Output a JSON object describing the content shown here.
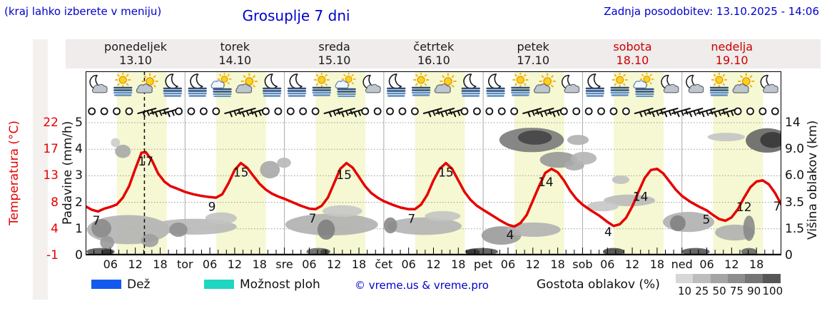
{
  "header": {
    "hint": "(kraj lahko izberete v meniju)",
    "title": "Grosuplje 7 dni",
    "last_update": "Zadnja posodobitev: 13.10.2025 - 14:06"
  },
  "day_header": {
    "days": [
      {
        "name": "ponedeljek",
        "date": "13.10",
        "highlight": false
      },
      {
        "name": "torek",
        "date": "14.10",
        "highlight": false
      },
      {
        "name": "sreda",
        "date": "15.10",
        "highlight": false
      },
      {
        "name": "četrtek",
        "date": "16.10",
        "highlight": false
      },
      {
        "name": "petek",
        "date": "17.10",
        "highlight": false
      },
      {
        "name": "sobota",
        "date": "18.10",
        "highlight": true
      },
      {
        "name": "nedelja",
        "date": "19.10",
        "highlight": true
      }
    ]
  },
  "axis_left": {
    "temp_title": "Temperatura (°C)",
    "temp_ticks": [
      "22",
      "17",
      "13",
      "8",
      "4",
      "-1"
    ],
    "precip_title": "Padavine (mm/h)",
    "precip_ticks": [
      "5",
      "4",
      "3",
      "2",
      "1",
      "0"
    ]
  },
  "axis_right": {
    "title": "Višina oblakov (km)",
    "ticks": [
      "14",
      "9.0",
      "6.0",
      "3.5",
      "1.5",
      "0"
    ]
  },
  "axis_bottom": {
    "hour_labels": [
      "06",
      "12",
      "18"
    ],
    "day_abbr": [
      "tor",
      "sre",
      "čet",
      "pet",
      "sob",
      "ned"
    ]
  },
  "legend": {
    "rain_label": "Dež",
    "rain_color": "#1359ee",
    "showers_label": "Možnost ploh",
    "showers_color": "#1fd6c1",
    "copyright": "© vreme.us & vreme.pro",
    "density_label": "Gostota oblakov (%)",
    "density_ticks": [
      "10",
      "25",
      "50",
      "75",
      "90",
      "100"
    ],
    "density_colors": [
      "#d7d7d7",
      "#bdbdbd",
      "#a4a4a4",
      "#8d8d8d",
      "#757575",
      "#575757"
    ]
  },
  "colors": {
    "accent_blue": "#0000cc",
    "temp_red": "#e60000",
    "day_red": "#cc0000",
    "band_yellow": "#f5f8d2",
    "grid_gray": "#999999",
    "separator_gray": "#aaaaaa"
  },
  "chart_data": {
    "type": "line",
    "title": "Grosuplje 7 dni",
    "x_axis": {
      "unit": "hours from Monday 00:00",
      "range": [
        0,
        168
      ],
      "hours_per_day": 24
    },
    "y_precip_axis": {
      "label": "Padavine (mm/h)",
      "ticks": [
        5,
        4,
        3,
        2,
        1,
        0
      ]
    },
    "y_temp_axis": {
      "label": "Temperatura (°C)",
      "ticks": [
        22,
        17,
        13,
        8,
        4,
        -1
      ],
      "unit_map": "u=(T+1)/4.6"
    },
    "y_cloud_axis": {
      "label": "Višina oblakov (km)",
      "ticks": [
        "14",
        "9.0",
        "6.0",
        "3.5",
        "1.5",
        "0"
      ]
    },
    "grid": true,
    "current_time_hour": 14.2,
    "daytime_frac": [
      0.315,
      0.815
    ],
    "temperature_series": {
      "name": "Temperatura",
      "color": "#e60000",
      "points": [
        [
          0,
          7.5
        ],
        [
          1.5,
          6.9
        ],
        [
          3,
          6.6
        ],
        [
          4.5,
          7.1
        ],
        [
          6,
          7.4
        ],
        [
          7.5,
          7.8
        ],
        [
          9,
          9.0
        ],
        [
          10.5,
          11.0
        ],
        [
          12,
          14.0
        ],
        [
          13.5,
          16.8
        ],
        [
          14.5,
          16.9
        ],
        [
          16,
          15.5
        ],
        [
          17.5,
          13.2
        ],
        [
          19,
          11.8
        ],
        [
          20.5,
          11.0
        ],
        [
          22,
          10.6
        ],
        [
          24,
          10.0
        ],
        [
          26,
          9.6
        ],
        [
          28,
          9.3
        ],
        [
          30,
          9.1
        ],
        [
          31.5,
          9.0
        ],
        [
          33,
          9.6
        ],
        [
          34.5,
          11.5
        ],
        [
          36,
          13.8
        ],
        [
          37.5,
          15.0
        ],
        [
          39,
          14.2
        ],
        [
          40.5,
          12.8
        ],
        [
          42,
          11.4
        ],
        [
          43.5,
          10.4
        ],
        [
          45,
          9.7
        ],
        [
          46.5,
          9.2
        ],
        [
          48,
          8.8
        ],
        [
          50,
          8.2
        ],
        [
          52,
          7.6
        ],
        [
          54,
          7.1
        ],
        [
          55.5,
          7.0
        ],
        [
          57,
          7.6
        ],
        [
          58.5,
          9.0
        ],
        [
          60,
          11.5
        ],
        [
          61.5,
          14.0
        ],
        [
          63,
          15.0
        ],
        [
          64.5,
          14.2
        ],
        [
          66,
          12.6
        ],
        [
          67.5,
          11.0
        ],
        [
          69,
          9.8
        ],
        [
          70.5,
          9.0
        ],
        [
          72,
          8.4
        ],
        [
          74,
          7.8
        ],
        [
          76,
          7.3
        ],
        [
          78,
          7.0
        ],
        [
          79.5,
          7.0
        ],
        [
          81,
          7.8
        ],
        [
          82.5,
          9.5
        ],
        [
          84,
          12.0
        ],
        [
          85.5,
          14.0
        ],
        [
          87,
          15.0
        ],
        [
          88.5,
          14.0
        ],
        [
          90,
          12.0
        ],
        [
          91.5,
          10.0
        ],
        [
          93,
          8.6
        ],
        [
          94.5,
          7.6
        ],
        [
          96,
          6.9
        ],
        [
          98,
          6.0
        ],
        [
          100,
          5.1
        ],
        [
          102,
          4.3
        ],
        [
          103.5,
          4.0
        ],
        [
          105,
          4.6
        ],
        [
          106.5,
          6.0
        ],
        [
          108,
          8.5
        ],
        [
          109.5,
          11.0
        ],
        [
          111,
          13.3
        ],
        [
          112.5,
          14.0
        ],
        [
          114,
          13.4
        ],
        [
          115.5,
          12.0
        ],
        [
          117,
          10.2
        ],
        [
          118.5,
          8.8
        ],
        [
          120,
          7.8
        ],
        [
          122,
          6.8
        ],
        [
          124,
          5.9
        ],
        [
          126,
          4.8
        ],
        [
          127.5,
          4.1
        ],
        [
          129,
          4.4
        ],
        [
          130.5,
          5.5
        ],
        [
          132,
          7.5
        ],
        [
          133.5,
          10.0
        ],
        [
          135,
          12.4
        ],
        [
          136.5,
          13.8
        ],
        [
          138,
          14.0
        ],
        [
          139.5,
          13.2
        ],
        [
          141,
          11.8
        ],
        [
          142.5,
          10.4
        ],
        [
          144,
          9.3
        ],
        [
          146,
          8.3
        ],
        [
          148,
          7.5
        ],
        [
          150,
          6.8
        ],
        [
          151.5,
          6.0
        ],
        [
          153,
          5.3
        ],
        [
          154.5,
          5.0
        ],
        [
          156,
          5.6
        ],
        [
          157.5,
          7.0
        ],
        [
          159,
          9.0
        ],
        [
          160.5,
          10.8
        ],
        [
          162,
          11.8
        ],
        [
          163.5,
          12.0
        ],
        [
          165,
          11.3
        ],
        [
          166.5,
          9.8
        ],
        [
          168,
          7.8
        ]
      ]
    },
    "point_labels": [
      {
        "h": 2.6,
        "text": "7"
      },
      {
        "h": 14.5,
        "text": "17"
      },
      {
        "h": 30.5,
        "text": "9"
      },
      {
        "h": 37.5,
        "text": "15"
      },
      {
        "h": 54.8,
        "text": "7"
      },
      {
        "h": 62.4,
        "text": "15"
      },
      {
        "h": 78.7,
        "text": "7"
      },
      {
        "h": 87,
        "text": "15"
      },
      {
        "h": 102.5,
        "text": "4"
      },
      {
        "h": 111.1,
        "text": "14"
      },
      {
        "h": 126.2,
        "text": "4"
      },
      {
        "h": 134,
        "text": "14"
      },
      {
        "h": 149.9,
        "text": "5"
      },
      {
        "h": 159,
        "text": "12"
      },
      {
        "h": 167,
        "text": "7"
      }
    ],
    "weather_icons": [
      [
        "moon-cloud",
        "sun-fog",
        "sun-cloud",
        "moon-fog"
      ],
      [
        "moon-fog",
        "sun-cloud-fog",
        "sun-cloud",
        "moon-fog"
      ],
      [
        "moon-fog",
        "sun-fog",
        "sun-cloud-fog",
        "moon-cloud"
      ],
      [
        "moon-fog",
        "sun-fog",
        "sun-cloud",
        "moon-fog"
      ],
      [
        "moon-fog",
        "sun-fog",
        "sun-cloud",
        "moon-cloud"
      ],
      [
        "moon-fog",
        "sun-fog",
        "sun-cloud-fog",
        "moon-cloud"
      ],
      [
        "moon-cloud",
        "sun-fog",
        "sun-cloud",
        "moon-cloud"
      ]
    ],
    "wind_rows": [
      "ccccbbbc",
      "cccbbbcc",
      "cccbbbcc",
      "cccbbbcc",
      "cccbbbcc",
      "ccccbbbb",
      "bbbbcccc"
    ],
    "clouds": [
      {
        "h": 10.3,
        "u": 0.97,
        "rh": 10,
        "ru": 0.55,
        "c": "#b2b2b2"
      },
      {
        "h": 3.8,
        "u": 1.02,
        "rh": 2.4,
        "ru": 0.35,
        "c": "#8c8c8c"
      },
      {
        "h": 5.2,
        "u": 0.48,
        "rh": 1.7,
        "ru": 0.25,
        "c": "#999999"
      },
      {
        "h": 15.5,
        "u": 0.56,
        "rh": 2.1,
        "ru": 0.25,
        "c": "#a0a0a0"
      },
      {
        "h": 7.2,
        "u": 4.25,
        "rh": 1.1,
        "ru": 0.17,
        "c": "#cccccc"
      },
      {
        "h": 9.0,
        "u": 3.92,
        "rh": 1.9,
        "ru": 0.25,
        "c": "#a8a8a8"
      },
      {
        "h": 26.2,
        "u": 1.08,
        "rh": 10.3,
        "ru": 0.3,
        "c": "#b8b8b8"
      },
      {
        "h": 22.4,
        "u": 0.97,
        "rh": 2.2,
        "ru": 0.27,
        "c": "#909090"
      },
      {
        "h": 32.7,
        "u": 1.4,
        "rh": 3.8,
        "ru": 0.22,
        "c": "#c2c2c2"
      },
      {
        "h": 44.5,
        "u": 3.23,
        "rh": 2.4,
        "ru": 0.33,
        "c": "#a8a8a8"
      },
      {
        "h": 47.9,
        "u": 3.49,
        "rh": 1.7,
        "ru": 0.19,
        "c": "#b8b8b8"
      },
      {
        "h": 59.4,
        "u": 1.16,
        "rh": 11.2,
        "ru": 0.41,
        "c": "#b0b0b0"
      },
      {
        "h": 58.1,
        "u": 0.97,
        "rh": 2.1,
        "ru": 0.38,
        "c": "#808080"
      },
      {
        "h": 62.0,
        "u": 1.67,
        "rh": 4.8,
        "ru": 0.22,
        "c": "#c6c6c6"
      },
      {
        "h": 81.8,
        "u": 1.1,
        "rh": 9.0,
        "ru": 0.33,
        "c": "#b4b4b4"
      },
      {
        "h": 73.6,
        "u": 1.13,
        "rh": 1.6,
        "ru": 0.3,
        "c": "#8a8a8a"
      },
      {
        "h": 86.2,
        "u": 1.48,
        "rh": 4.3,
        "ru": 0.19,
        "c": "#c4c4c4"
      },
      {
        "h": 107.7,
        "u": 4.35,
        "rh": 7.8,
        "ru": 0.46,
        "c": "#7a7a7a"
      },
      {
        "h": 108.5,
        "u": 4.44,
        "rh": 4.1,
        "ru": 0.27,
        "c": "#454545"
      },
      {
        "h": 114.2,
        "u": 3.6,
        "rh": 4.5,
        "ru": 0.3,
        "c": "#989898"
      },
      {
        "h": 118.0,
        "u": 3.39,
        "rh": 2.4,
        "ru": 0.19,
        "c": "#aaaaaa"
      },
      {
        "h": 100.4,
        "u": 0.75,
        "rh": 4.8,
        "ru": 0.35,
        "c": "#9a9a9a"
      },
      {
        "h": 108.2,
        "u": 0.97,
        "rh": 6.5,
        "ru": 0.27,
        "c": "#b2b2b2"
      },
      {
        "h": 118.9,
        "u": 4.35,
        "rh": 2.6,
        "ru": 0.19,
        "c": "#b0b0b0"
      },
      {
        "h": 120.3,
        "u": 3.66,
        "rh": 3.1,
        "ru": 0.24,
        "c": "#b4b4b4"
      },
      {
        "h": 129.2,
        "u": 2.85,
        "rh": 2.1,
        "ru": 0.16,
        "c": "#c0c0c0"
      },
      {
        "h": 131.3,
        "u": 2.07,
        "rh": 6.2,
        "ru": 0.22,
        "c": "#bababa"
      },
      {
        "h": 124.9,
        "u": 1.85,
        "rh": 3.8,
        "ru": 0.19,
        "c": "#c6c6c6"
      },
      {
        "h": 145.6,
        "u": 1.26,
        "rh": 6.2,
        "ru": 0.38,
        "c": "#b0b0b0"
      },
      {
        "h": 143.0,
        "u": 1.21,
        "rh": 1.9,
        "ru": 0.3,
        "c": "#828282"
      },
      {
        "h": 156.8,
        "u": 0.86,
        "rh": 4.8,
        "ru": 0.3,
        "c": "#b0b0b0"
      },
      {
        "h": 160.2,
        "u": 1.02,
        "rh": 1.4,
        "ru": 0.48,
        "c": "#8a8a8a"
      },
      {
        "h": 154.7,
        "u": 4.46,
        "rh": 4.5,
        "ru": 0.16,
        "c": "#c4c4c4"
      },
      {
        "h": 164.6,
        "u": 4.33,
        "rh": 5.2,
        "ru": 0.46,
        "c": "#666666"
      },
      {
        "h": 165.8,
        "u": 4.35,
        "rh": 2.9,
        "ru": 0.3,
        "c": "#383838"
      },
      {
        "h": 3.6,
        "u": 0.14,
        "rh": 3.4,
        "ru": 0.14,
        "c": "#5a5a5a"
      },
      {
        "h": 5.2,
        "u": 0.12,
        "rh": 1.4,
        "ru": 0.12,
        "c": "#333333"
      },
      {
        "h": 56.2,
        "u": 0.14,
        "rh": 2.9,
        "ru": 0.14,
        "c": "#666666"
      },
      {
        "h": 57.7,
        "u": 0.12,
        "rh": 1.0,
        "ru": 0.12,
        "c": "#444444"
      },
      {
        "h": 95.6,
        "u": 0.14,
        "rh": 4.0,
        "ru": 0.14,
        "c": "#555555"
      },
      {
        "h": 93.6,
        "u": 0.12,
        "rh": 1.6,
        "ru": 0.12,
        "c": "#333333"
      },
      {
        "h": 127.5,
        "u": 0.14,
        "rh": 2.6,
        "ru": 0.14,
        "c": "#484848"
      },
      {
        "h": 147.3,
        "u": 0.14,
        "rh": 3.4,
        "ru": 0.14,
        "c": "#555555"
      },
      {
        "h": 160.2,
        "u": 0.14,
        "rh": 1.9,
        "ru": 0.14,
        "c": "#666666"
      }
    ]
  }
}
